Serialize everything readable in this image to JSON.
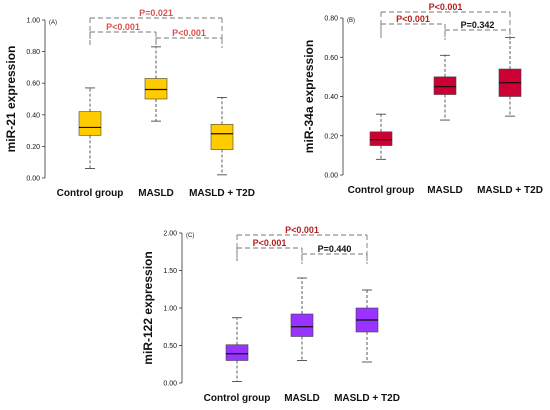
{
  "chart_data": [
    {
      "type": "box",
      "panel_tag": "(A)",
      "ylabel": "miR-21 expression",
      "ylim": [
        0,
        1.0
      ],
      "yticks": [
        "0.00",
        "0.20",
        "0.40",
        "0.60",
        "0.80",
        "1.00"
      ],
      "categories": [
        "Control group",
        "MASLD",
        "MASLD + T2D"
      ],
      "boxes": [
        {
          "min": 0.06,
          "q1": 0.27,
          "median": 0.32,
          "q3": 0.42,
          "max": 0.57
        },
        {
          "min": 0.36,
          "q1": 0.5,
          "median": 0.56,
          "q3": 0.63,
          "max": 0.83
        },
        {
          "min": 0.02,
          "q1": 0.18,
          "median": 0.28,
          "q3": 0.34,
          "max": 0.51
        }
      ],
      "box_color": "#ffcc00",
      "comparisons": [
        {
          "from": 0,
          "to": 2,
          "label": "P=0.021",
          "color": "#d9534f"
        },
        {
          "from": 0,
          "to": 1,
          "label": "P<0.001",
          "color": "#d9534f"
        },
        {
          "from": 1,
          "to": 2,
          "label": "P<0.001",
          "color": "#d9534f"
        }
      ]
    },
    {
      "type": "box",
      "panel_tag": "(B)",
      "ylabel": "miR-34a expression",
      "ylim": [
        0,
        0.8
      ],
      "yticks": [
        "0.00",
        "0.20",
        "0.40",
        "0.60",
        "0.80"
      ],
      "categories": [
        "Control group",
        "MASLD",
        "MASLD + T2D"
      ],
      "boxes": [
        {
          "min": 0.08,
          "q1": 0.15,
          "median": 0.18,
          "q3": 0.22,
          "max": 0.31
        },
        {
          "min": 0.28,
          "q1": 0.41,
          "median": 0.45,
          "q3": 0.5,
          "max": 0.61
        },
        {
          "min": 0.3,
          "q1": 0.4,
          "median": 0.47,
          "q3": 0.54,
          "max": 0.7
        }
      ],
      "box_color": "#cc0033",
      "comparisons": [
        {
          "from": 0,
          "to": 2,
          "label": "P<0.001",
          "color": "#b22222"
        },
        {
          "from": 0,
          "to": 1,
          "label": "P<0.001",
          "color": "#b22222"
        },
        {
          "from": 1,
          "to": 2,
          "label": "P=0.342",
          "color": "#111111"
        }
      ]
    },
    {
      "type": "box",
      "panel_tag": "(C)",
      "ylabel": "miR-122 expression",
      "ylim": [
        0,
        2.0
      ],
      "yticks": [
        "0.00",
        "0.50",
        "1.00",
        "1.50",
        "2.00"
      ],
      "categories": [
        "Control group",
        "MASLD",
        "MASLD + T2D"
      ],
      "boxes": [
        {
          "min": 0.02,
          "q1": 0.3,
          "median": 0.39,
          "q3": 0.51,
          "max": 0.87
        },
        {
          "min": 0.3,
          "q1": 0.62,
          "median": 0.75,
          "q3": 0.92,
          "max": 1.4
        },
        {
          "min": 0.28,
          "q1": 0.68,
          "median": 0.84,
          "q3": 1.0,
          "max": 1.24
        }
      ],
      "box_color": "#9933ff",
      "comparisons": [
        {
          "from": 0,
          "to": 2,
          "label": "P<0.001",
          "color": "#b22222"
        },
        {
          "from": 0,
          "to": 1,
          "label": "P<0.001",
          "color": "#b22222"
        },
        {
          "from": 1,
          "to": 2,
          "label": "P=0.440",
          "color": "#111111"
        }
      ]
    }
  ]
}
